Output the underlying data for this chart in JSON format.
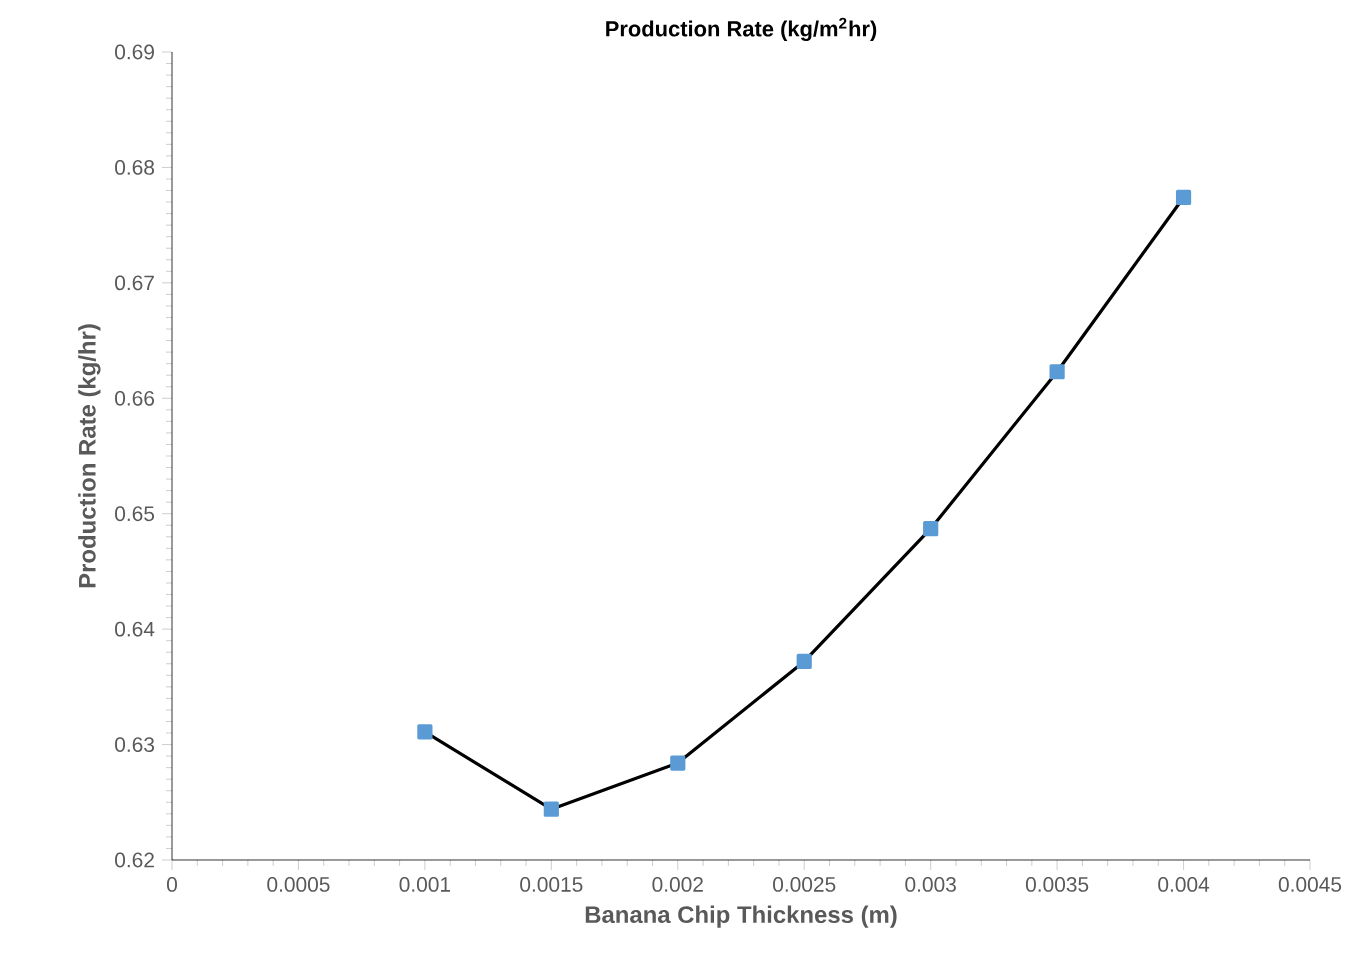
{
  "chart_data": {
    "type": "line",
    "title": "Production Rate (kg/m$^{2}$hr)",
    "xlabel": "Banana Chip Thickness (m)",
    "ylabel": "Production Rate (kg/hr)",
    "x": [
      0.001,
      0.0015,
      0.002,
      0.0025,
      0.003,
      0.0035,
      0.004
    ],
    "series": [
      {
        "color": "#5b9bd5",
        "values": [
          0.6311,
          0.6244,
          0.6284,
          0.6372,
          0.6487,
          0.6623,
          0.6774
        ]
      }
    ],
    "marker": "square",
    "line_style": "solid",
    "xlim": [
      0,
      0.0045
    ],
    "xticks": [
      0,
      0.0005,
      0.001,
      0.0015,
      0.002,
      0.0025,
      0.003,
      0.0035,
      0.004,
      0.0045
    ],
    "ylim": [
      0.62,
      0.69
    ],
    "yticks": [
      0.62,
      0.63,
      0.64,
      0.65,
      0.66,
      0.67,
      0.68,
      0.69
    ]
  }
}
